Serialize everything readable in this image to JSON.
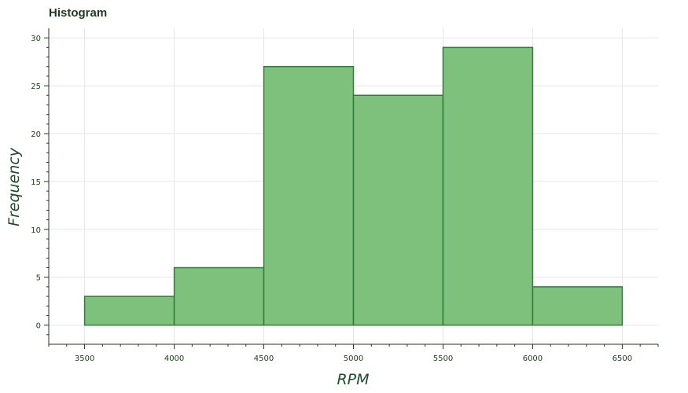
{
  "chart_data": {
    "type": "bar",
    "title": "Histogram",
    "xlabel": "RPM",
    "ylabel": "Frequency",
    "bins": [
      {
        "start": 3500,
        "end": 4000,
        "count": 3
      },
      {
        "start": 4000,
        "end": 4500,
        "count": 6
      },
      {
        "start": 4500,
        "end": 5000,
        "count": 27
      },
      {
        "start": 5000,
        "end": 5500,
        "count": 24
      },
      {
        "start": 5500,
        "end": 6000,
        "count": 29
      },
      {
        "start": 6000,
        "end": 6500,
        "count": 4
      }
    ],
    "x_ticks": [
      3500,
      4000,
      4500,
      5000,
      5500,
      6000,
      6500
    ],
    "y_ticks": [
      0,
      5,
      10,
      15,
      20,
      25,
      30
    ],
    "xlim": [
      3300,
      6700
    ],
    "ylim": [
      -2,
      31
    ],
    "grid": true,
    "colors": {
      "bar_fill": "#7dc17d",
      "bar_stroke": "#2e7d3a",
      "text": "#1f3b1f",
      "grid": "#e6e6e6"
    }
  }
}
